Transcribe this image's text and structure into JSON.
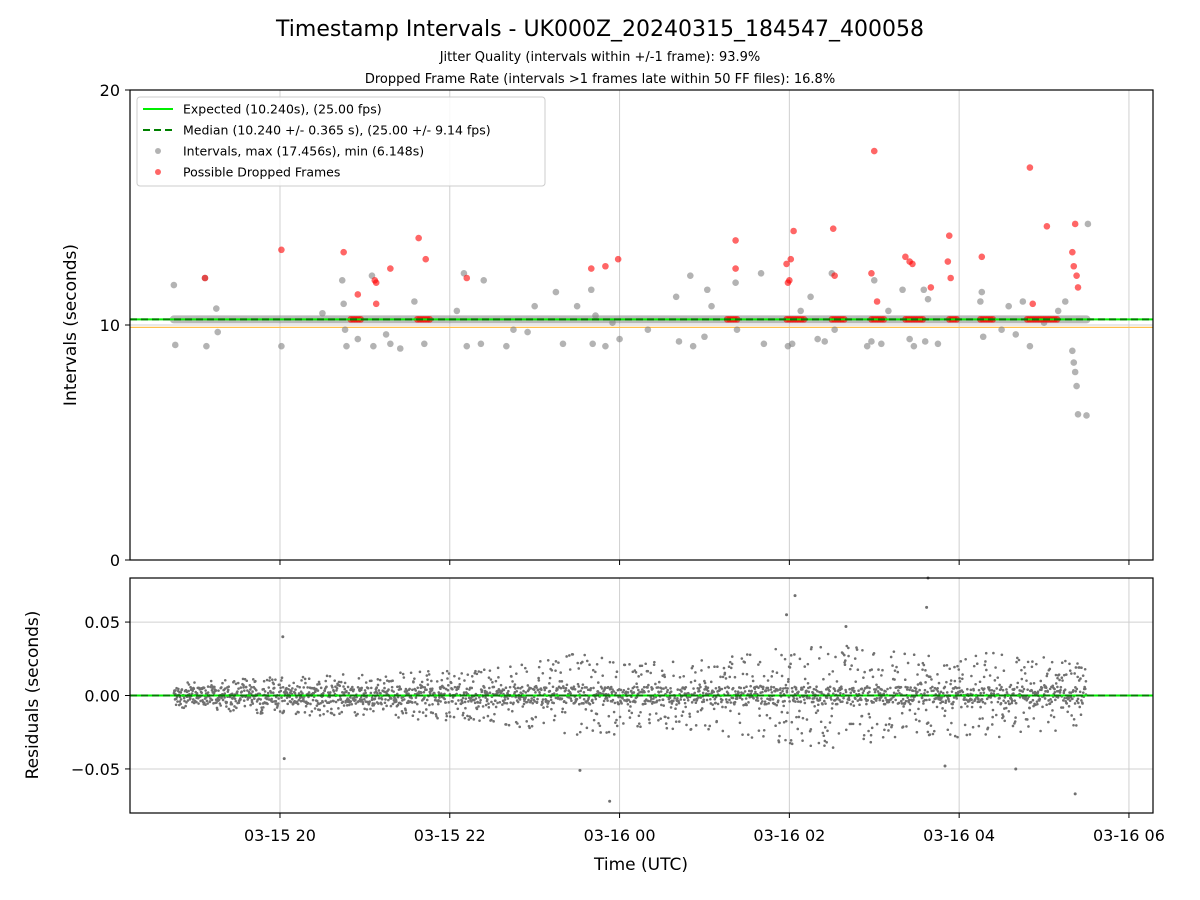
{
  "figure": {
    "title": "Timestamp Intervals - UK000Z_20240315_184547_400058",
    "subtitle1": "Jitter Quality (intervals within +/-1 frame): 93.9%",
    "subtitle2": "Dropped Frame Rate (intervals >1 frames late within 50 FF files): 16.8%"
  },
  "chart_data": [
    {
      "type": "scatter",
      "panel": "intervals",
      "ylabel": "Intervals (seconds)",
      "ylim": [
        0,
        20
      ],
      "yticks": [
        "0",
        "10",
        "20"
      ],
      "xlim": [
        "2024-03-15 18:14",
        "2024-03-16 06:17"
      ],
      "grid": true,
      "legend": {
        "placement": "top-left",
        "entries": [
          {
            "label": "Expected (10.240s), (25.00 fps)",
            "color": "#00ee00",
            "style": "solid-line"
          },
          {
            "label": "Median (10.240 +/- 0.365 s), (25.00 +/- 9.14 fps)",
            "color": "#008000",
            "style": "dashed-line"
          },
          {
            "label": "Intervals, max (17.456s), min (6.148s)",
            "color": "#808080",
            "style": "marker"
          },
          {
            "label": "Possible Dropped Frames",
            "color": "#ff0000",
            "style": "marker"
          }
        ]
      },
      "expected_interval": 10.24,
      "median_interval": 10.24,
      "band_upper": 10.24,
      "band_lower": 9.9,
      "time_range": [
        "2024-03-15 18:45",
        "2024-03-16 05:30"
      ],
      "series": [
        {
          "name": "Intervals, max (17.456s), min (6.148s)",
          "color": "#808080",
          "points": [
            [
              "2024-03-15 18:45",
              11.7
            ],
            [
              "2024-03-15 18:46",
              9.15
            ],
            [
              "2024-03-15 19:07",
              12.0
            ],
            [
              "2024-03-15 19:08",
              9.1
            ],
            [
              "2024-03-15 19:15",
              10.7
            ],
            [
              "2024-03-15 19:16",
              9.7
            ],
            [
              "2024-03-15 20:01",
              9.1
            ],
            [
              "2024-03-15 20:30",
              10.5
            ],
            [
              "2024-03-15 20:44",
              11.9
            ],
            [
              "2024-03-15 20:45",
              10.9
            ],
            [
              "2024-03-15 20:46",
              9.8
            ],
            [
              "2024-03-15 20:47",
              9.1
            ],
            [
              "2024-03-15 20:55",
              9.4
            ],
            [
              "2024-03-15 21:05",
              12.1
            ],
            [
              "2024-03-15 21:06",
              9.1
            ],
            [
              "2024-03-15 21:15",
              9.6
            ],
            [
              "2024-03-15 21:18",
              9.2
            ],
            [
              "2024-03-15 21:25",
              9.0
            ],
            [
              "2024-03-15 21:35",
              11.0
            ],
            [
              "2024-03-15 21:42",
              9.2
            ],
            [
              "2024-03-15 22:05",
              10.6
            ],
            [
              "2024-03-15 22:10",
              12.2
            ],
            [
              "2024-03-15 22:12",
              9.1
            ],
            [
              "2024-03-15 22:22",
              9.2
            ],
            [
              "2024-03-15 22:24",
              11.9
            ],
            [
              "2024-03-15 22:40",
              9.1
            ],
            [
              "2024-03-15 22:45",
              9.8
            ],
            [
              "2024-03-15 22:55",
              9.7
            ],
            [
              "2024-03-15 23:00",
              10.8
            ],
            [
              "2024-03-15 23:15",
              11.4
            ],
            [
              "2024-03-15 23:20",
              9.2
            ],
            [
              "2024-03-15 23:30",
              10.8
            ],
            [
              "2024-03-15 23:40",
              11.5
            ],
            [
              "2024-03-15 23:41",
              9.2
            ],
            [
              "2024-03-15 23:43",
              10.4
            ],
            [
              "2024-03-15 23:50",
              9.1
            ],
            [
              "2024-03-15 23:55",
              10.1
            ],
            [
              "2024-03-16 00:00",
              9.4
            ],
            [
              "2024-03-16 00:20",
              9.8
            ],
            [
              "2024-03-16 00:40",
              11.2
            ],
            [
              "2024-03-16 00:42",
              9.3
            ],
            [
              "2024-03-16 00:50",
              12.1
            ],
            [
              "2024-03-16 00:52",
              9.1
            ],
            [
              "2024-03-16 01:00",
              9.5
            ],
            [
              "2024-03-16 01:02",
              11.5
            ],
            [
              "2024-03-16 01:05",
              10.8
            ],
            [
              "2024-03-16 01:22",
              11.8
            ],
            [
              "2024-03-16 01:23",
              9.8
            ],
            [
              "2024-03-16 01:40",
              12.2
            ],
            [
              "2024-03-16 01:42",
              9.2
            ],
            [
              "2024-03-16 01:59",
              9.1
            ],
            [
              "2024-03-16 02:02",
              9.2
            ],
            [
              "2024-03-16 02:08",
              10.6
            ],
            [
              "2024-03-16 02:15",
              11.2
            ],
            [
              "2024-03-16 02:20",
              9.4
            ],
            [
              "2024-03-16 02:25",
              9.3
            ],
            [
              "2024-03-16 02:30",
              12.2
            ],
            [
              "2024-03-16 02:32",
              9.8
            ],
            [
              "2024-03-16 02:55",
              9.1
            ],
            [
              "2024-03-16 02:58",
              9.3
            ],
            [
              "2024-03-16 03:00",
              11.9
            ],
            [
              "2024-03-16 03:05",
              9.2
            ],
            [
              "2024-03-16 03:10",
              10.6
            ],
            [
              "2024-03-16 03:20",
              11.5
            ],
            [
              "2024-03-16 03:25",
              9.4
            ],
            [
              "2024-03-16 03:28",
              9.1
            ],
            [
              "2024-03-16 03:35",
              11.5
            ],
            [
              "2024-03-16 03:36",
              9.3
            ],
            [
              "2024-03-16 03:38",
              11.1
            ],
            [
              "2024-03-16 03:45",
              9.2
            ],
            [
              "2024-03-16 04:15",
              11.0
            ],
            [
              "2024-03-16 04:16",
              11.4
            ],
            [
              "2024-03-16 04:17",
              9.5
            ],
            [
              "2024-03-16 04:30",
              9.8
            ],
            [
              "2024-03-16 04:35",
              10.8
            ],
            [
              "2024-03-16 04:40",
              9.6
            ],
            [
              "2024-03-16 04:45",
              11.0
            ],
            [
              "2024-03-16 04:50",
              9.1
            ],
            [
              "2024-03-16 05:00",
              10.1
            ],
            [
              "2024-03-16 05:10",
              10.6
            ],
            [
              "2024-03-16 05:15",
              11.0
            ],
            [
              "2024-03-16 05:20",
              8.9
            ],
            [
              "2024-03-16 05:21",
              8.4
            ],
            [
              "2024-03-16 05:22",
              8.0
            ],
            [
              "2024-03-16 05:23",
              7.4
            ],
            [
              "2024-03-16 05:24",
              6.2
            ],
            [
              "2024-03-16 05:30",
              6.15
            ],
            [
              "2024-03-16 05:31",
              14.3
            ]
          ]
        },
        {
          "name": "Possible Dropped Frames",
          "color": "#ff0000",
          "points": [
            [
              "2024-03-15 19:07",
              12.0
            ],
            [
              "2024-03-15 20:01",
              13.2
            ],
            [
              "2024-03-15 20:45",
              13.1
            ],
            [
              "2024-03-15 20:55",
              11.3
            ],
            [
              "2024-03-15 21:07",
              11.9
            ],
            [
              "2024-03-15 21:08",
              11.8
            ],
            [
              "2024-03-15 21:08",
              10.9
            ],
            [
              "2024-03-15 21:18",
              12.4
            ],
            [
              "2024-03-15 21:38",
              13.7
            ],
            [
              "2024-03-15 21:43",
              12.8
            ],
            [
              "2024-03-15 22:12",
              12.0
            ],
            [
              "2024-03-15 23:40",
              12.4
            ],
            [
              "2024-03-15 23:50",
              12.5
            ],
            [
              "2024-03-15 23:59",
              12.8
            ],
            [
              "2024-03-16 01:22",
              13.6
            ],
            [
              "2024-03-16 01:22",
              12.4
            ],
            [
              "2024-03-16 01:58",
              12.6
            ],
            [
              "2024-03-16 01:59",
              11.8
            ],
            [
              "2024-03-16 02:00",
              11.9
            ],
            [
              "2024-03-16 02:01",
              12.8
            ],
            [
              "2024-03-16 02:03",
              14.0
            ],
            [
              "2024-03-16 02:31",
              14.1
            ],
            [
              "2024-03-16 02:32",
              12.1
            ],
            [
              "2024-03-16 02:58",
              12.2
            ],
            [
              "2024-03-16 03:00",
              17.4
            ],
            [
              "2024-03-16 03:02",
              11.0
            ],
            [
              "2024-03-16 03:22",
              12.9
            ],
            [
              "2024-03-16 03:25",
              12.7
            ],
            [
              "2024-03-16 03:27",
              12.6
            ],
            [
              "2024-03-16 03:40",
              11.6
            ],
            [
              "2024-03-16 03:52",
              12.7
            ],
            [
              "2024-03-16 03:53",
              13.8
            ],
            [
              "2024-03-16 03:54",
              12.0
            ],
            [
              "2024-03-16 04:16",
              12.9
            ],
            [
              "2024-03-16 04:50",
              16.7
            ],
            [
              "2024-03-16 04:52",
              10.9
            ],
            [
              "2024-03-16 05:02",
              14.2
            ],
            [
              "2024-03-16 05:20",
              13.1
            ],
            [
              "2024-03-16 05:21",
              12.5
            ],
            [
              "2024-03-16 05:22",
              14.3
            ],
            [
              "2024-03-16 05:23",
              12.1
            ],
            [
              "2024-03-16 05:24",
              11.6
            ]
          ]
        }
      ]
    },
    {
      "type": "scatter",
      "panel": "residuals",
      "xlabel": "Time (UTC)",
      "ylabel": "Residuals (seconds)",
      "ylim": [
        -0.08,
        0.08
      ],
      "yticks": [
        "0.05",
        "0.00",
        "−0.05"
      ],
      "xticks": [
        "03-15 20",
        "03-15 22",
        "03-16 00",
        "03-16 02",
        "03-16 04",
        "03-16 06"
      ],
      "grid": true,
      "series": [
        {
          "name": "Residuals",
          "color": "#707070",
          "noise_envelope": [
            [
              "2024-03-15 18:45",
              0.008
            ],
            [
              "2024-03-15 19:30",
              0.012
            ],
            [
              "2024-03-15 20:30",
              0.014
            ],
            [
              "2024-03-15 21:30",
              0.016
            ],
            [
              "2024-03-15 22:30",
              0.018
            ],
            [
              "2024-03-15 23:30",
              0.03
            ],
            [
              "2024-03-16 00:30",
              0.022
            ],
            [
              "2024-03-16 01:30",
              0.03
            ],
            [
              "2024-03-16 02:30",
              0.036
            ],
            [
              "2024-03-16 03:30",
              0.028
            ],
            [
              "2024-03-16 04:30",
              0.03
            ],
            [
              "2024-03-16 05:30",
              0.022
            ]
          ],
          "outliers": [
            [
              "2024-03-15 20:02",
              0.04
            ],
            [
              "2024-03-15 20:03",
              -0.043
            ],
            [
              "2024-03-15 23:53",
              -0.072
            ],
            [
              "2024-03-15 23:32",
              -0.051
            ],
            [
              "2024-03-16 02:04",
              0.068
            ],
            [
              "2024-03-16 01:58",
              0.055
            ],
            [
              "2024-03-16 03:37",
              0.06
            ],
            [
              "2024-03-16 03:38",
              0.08
            ],
            [
              "2024-03-16 05:22",
              -0.067
            ],
            [
              "2024-03-16 02:40",
              0.047
            ],
            [
              "2024-03-16 04:40",
              -0.05
            ],
            [
              "2024-03-16 03:50",
              -0.048
            ]
          ]
        },
        {
          "name": "Expected",
          "color": "#00ee00",
          "y": 0.0
        },
        {
          "name": "Median",
          "color": "#008000",
          "y": 0.0
        }
      ]
    }
  ]
}
